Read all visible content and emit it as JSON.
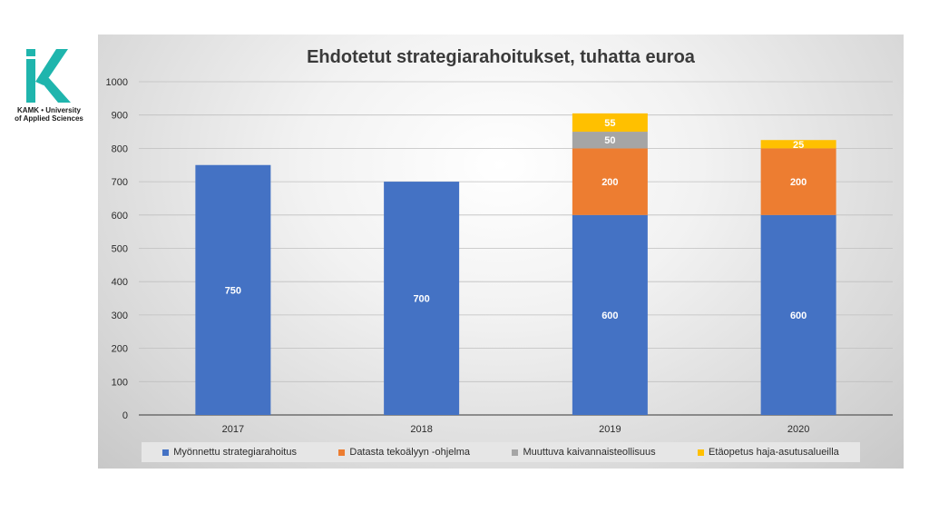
{
  "logo": {
    "line1": "KAMK • University",
    "line2": "of Applied Sciences"
  },
  "chart_data": {
    "type": "bar",
    "stacked": true,
    "title": "Ehdotetut strategiarahoitukset, tuhatta euroa",
    "categories": [
      "2017",
      "2018",
      "2019",
      "2020"
    ],
    "ylim": [
      0,
      1000
    ],
    "yticks": [
      0,
      100,
      200,
      300,
      400,
      500,
      600,
      700,
      800,
      900,
      1000
    ],
    "grid": true,
    "legend_position": "bottom",
    "series": [
      {
        "name": "Myönnettu strategiarahoitus",
        "color": "#4472c4",
        "values": [
          750,
          700,
          600,
          600
        ]
      },
      {
        "name": "Datasta tekoälyyn -ohjelma",
        "color": "#ed7d31",
        "values": [
          0,
          0,
          200,
          200
        ]
      },
      {
        "name": "Muuttuva kaivannaisteollisuus",
        "color": "#a5a5a5",
        "values": [
          0,
          0,
          50,
          0
        ]
      },
      {
        "name": "Etäopetus haja-asutusalueilla",
        "color": "#ffc000",
        "values": [
          0,
          0,
          55,
          25
        ]
      }
    ]
  }
}
